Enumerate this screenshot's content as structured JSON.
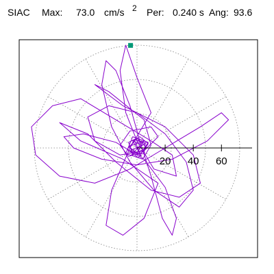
{
  "header": {
    "station": "SIAC",
    "max_label": "Max:",
    "max_value": "73.0",
    "unit": "cm/s",
    "unit_exponent": "2",
    "per_label": "Per:",
    "per_value": "0.240 s",
    "ang_label": "Ang:",
    "ang_value": "93.6"
  },
  "chart_data": {
    "type": "scatter",
    "subtype": "polar particle motion",
    "r_ticks": [
      20,
      40,
      60
    ],
    "r_range": [
      0,
      80
    ],
    "grid": "dotted",
    "max_marker": {
      "r": 73.0,
      "angle_deg": 93.6,
      "color": "#009977"
    },
    "trace_color": "#8800cc",
    "trace_points": [
      [
        0,
        0
      ],
      [
        4,
        2
      ],
      [
        -3,
        5
      ],
      [
        2,
        -4
      ],
      [
        -5,
        -2
      ],
      [
        6,
        3
      ],
      [
        -2,
        6
      ],
      [
        3,
        -6
      ],
      [
        -6,
        1
      ],
      [
        5,
        5
      ],
      [
        -4,
        -5
      ],
      [
        7,
        0
      ],
      [
        0,
        7
      ],
      [
        -7,
        -1
      ],
      [
        1,
        -7
      ],
      [
        8,
        4
      ],
      [
        -3,
        8
      ],
      [
        -8,
        -4
      ],
      [
        4,
        -8
      ],
      [
        10,
        2
      ],
      [
        5,
        20
      ],
      [
        -20,
        40
      ],
      [
        -30,
        45
      ],
      [
        -10,
        30
      ],
      [
        20,
        15
      ],
      [
        40,
        -5
      ],
      [
        45,
        -25
      ],
      [
        30,
        -35
      ],
      [
        10,
        -30
      ],
      [
        -15,
        -10
      ],
      [
        -35,
        10
      ],
      [
        -55,
        18
      ],
      [
        -40,
        5
      ],
      [
        -10,
        -8
      ],
      [
        15,
        -25
      ],
      [
        5,
        -50
      ],
      [
        -10,
        -62
      ],
      [
        -22,
        -55
      ],
      [
        -18,
        -30
      ],
      [
        -5,
        0
      ],
      [
        10,
        25
      ],
      [
        0,
        50
      ],
      [
        -8,
        73
      ],
      [
        -12,
        55
      ],
      [
        -8,
        25
      ],
      [
        0,
        5
      ],
      [
        12,
        -15
      ],
      [
        28,
        -20
      ],
      [
        25,
        -5
      ],
      [
        10,
        5
      ],
      [
        -15,
        20
      ],
      [
        -40,
        35
      ],
      [
        -60,
        30
      ],
      [
        -75,
        15
      ],
      [
        -72,
        -5
      ],
      [
        -55,
        -20
      ],
      [
        -30,
        -25
      ],
      [
        -5,
        -15
      ],
      [
        20,
        0
      ],
      [
        45,
        15
      ],
      [
        60,
        25
      ],
      [
        65,
        20
      ],
      [
        50,
        5
      ],
      [
        25,
        -8
      ],
      [
        0,
        -12
      ],
      [
        -25,
        -8
      ],
      [
        -45,
        0
      ],
      [
        -52,
        8
      ],
      [
        -38,
        10
      ],
      [
        -15,
        4
      ],
      [
        5,
        -8
      ],
      [
        20,
        -28
      ],
      [
        28,
        -50
      ],
      [
        25,
        -62
      ],
      [
        18,
        -50
      ],
      [
        10,
        -20
      ],
      [
        2,
        5
      ],
      [
        -5,
        30
      ],
      [
        -15,
        55
      ],
      [
        -22,
        62
      ],
      [
        -25,
        45
      ],
      [
        -18,
        15
      ],
      [
        -5,
        -10
      ],
      [
        12,
        -30
      ],
      [
        30,
        -42
      ],
      [
        40,
        -30
      ],
      [
        35,
        -10
      ],
      [
        20,
        10
      ],
      [
        0,
        25
      ],
      [
        -20,
        30
      ],
      [
        -35,
        22
      ],
      [
        -30,
        5
      ],
      [
        -12,
        -5
      ],
      [
        5,
        -2
      ],
      [
        15,
        8
      ],
      [
        10,
        15
      ],
      [
        -5,
        12
      ],
      [
        -12,
        2
      ],
      [
        -6,
        -6
      ],
      [
        4,
        -3
      ],
      [
        8,
        3
      ],
      [
        2,
        8
      ],
      [
        -6,
        4
      ],
      [
        -3,
        -5
      ],
      [
        5,
        -4
      ],
      [
        6,
        4
      ],
      [
        -2,
        6
      ],
      [
        -5,
        0
      ],
      [
        0,
        -4
      ],
      [
        3,
        2
      ]
    ]
  }
}
